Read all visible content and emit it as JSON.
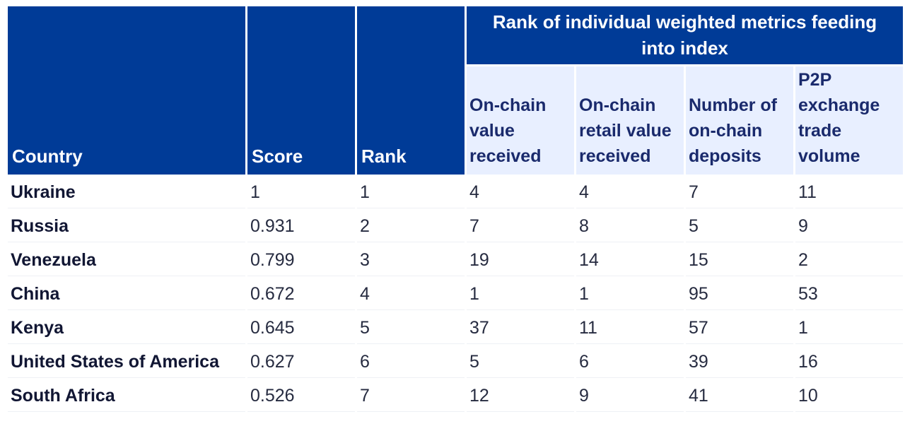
{
  "table": {
    "headers": {
      "country": "Country",
      "score": "Score",
      "rank": "Rank",
      "group_title": "Rank of individual weighted metrics feeding into index",
      "metrics": [
        "On-chain value received",
        "On-chain retail value received",
        "Number of on-chain deposits",
        "P2P exchange trade volume"
      ]
    },
    "rows": [
      {
        "country": "Ukraine",
        "score": "1",
        "rank": "1",
        "m1": "4",
        "m2": "4",
        "m3": "7",
        "m4": "11"
      },
      {
        "country": "Russia",
        "score": "0.931",
        "rank": "2",
        "m1": "7",
        "m2": "8",
        "m3": "5",
        "m4": "9"
      },
      {
        "country": "Venezuela",
        "score": "0.799",
        "rank": "3",
        "m1": "19",
        "m2": "14",
        "m3": "15",
        "m4": "2"
      },
      {
        "country": "China",
        "score": "0.672",
        "rank": "4",
        "m1": "1",
        "m2": "1",
        "m3": "95",
        "m4": "53"
      },
      {
        "country": "Kenya",
        "score": "0.645",
        "rank": "5",
        "m1": "37",
        "m2": "11",
        "m3": "57",
        "m4": "1"
      },
      {
        "country": "United States of America",
        "score": "0.627",
        "rank": "6",
        "m1": "5",
        "m2": "6",
        "m3": "39",
        "m4": "16"
      },
      {
        "country": "South Africa",
        "score": "0.526",
        "rank": "7",
        "m1": "12",
        "m2": "9",
        "m3": "41",
        "m4": "10"
      }
    ]
  },
  "colors": {
    "header_bg": "#003b97",
    "subheader_bg": "#e8efff",
    "header_text": "#ffffff"
  }
}
